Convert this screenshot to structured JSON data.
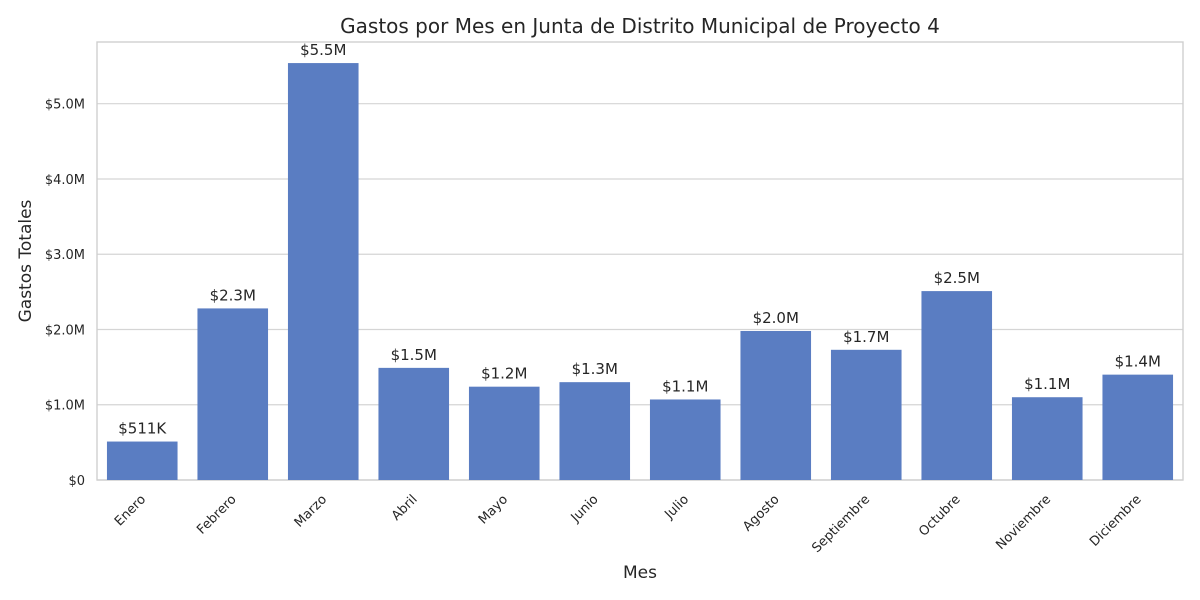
{
  "chart_data": {
    "type": "bar",
    "title": "Gastos por Mes en Junta de Distrito Municipal de Proyecto 4",
    "xlabel": "Mes",
    "ylabel": "Gastos Totales",
    "categories": [
      "Enero",
      "Febrero",
      "Marzo",
      "Abril",
      "Mayo",
      "Junio",
      "Julio",
      "Agosto",
      "Septiembre",
      "Octubre",
      "Noviembre",
      "Diciembre"
    ],
    "values": [
      511000,
      2280000,
      5540000,
      1490000,
      1240000,
      1300000,
      1070000,
      1980000,
      1730000,
      2510000,
      1100000,
      1400000
    ],
    "value_labels": [
      "$511K",
      "$2.3M",
      "$5.5M",
      "$1.5M",
      "$1.2M",
      "$1.3M",
      "$1.1M",
      "$2.0M",
      "$1.7M",
      "$2.5M",
      "$1.1M",
      "$1.4M"
    ],
    "y_ticks": [
      0,
      1000000,
      2000000,
      3000000,
      4000000,
      5000000
    ],
    "y_tick_labels": [
      "$0",
      "$1.0M",
      "$2.0M",
      "$3.0M",
      "$4.0M",
      "$5.0M"
    ],
    "ylim": [
      0,
      5820000
    ],
    "grid": true,
    "bar_color": "#5a7dc2"
  }
}
